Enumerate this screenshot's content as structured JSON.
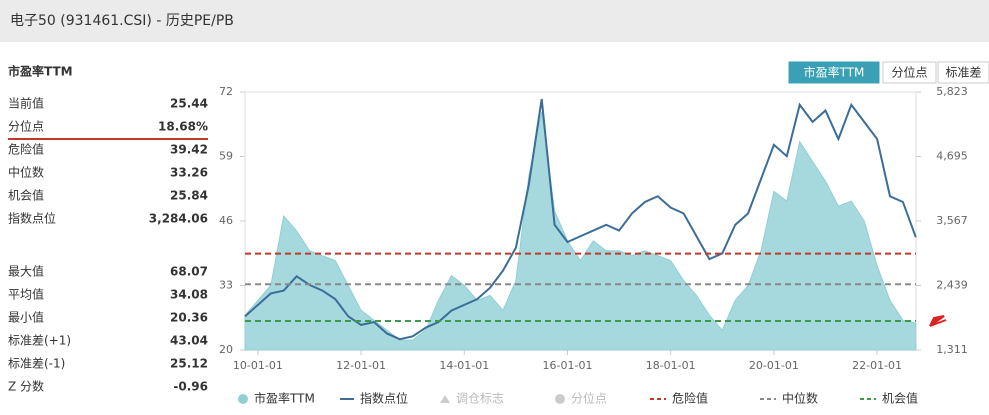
{
  "header": {
    "title": "电子50 (931461.CSI) - 历史PE/PB"
  },
  "panel": {
    "heading": "市盈率TTM",
    "stats_top": [
      {
        "label": "当前值",
        "value": "25.44"
      },
      {
        "label": "分位点",
        "value": "18.68%"
      },
      {
        "label": "危险值",
        "value": "39.42"
      },
      {
        "label": "中位数",
        "value": "33.26"
      },
      {
        "label": "机会值",
        "value": "25.84"
      },
      {
        "label": "指数点位",
        "value": "3,284.06"
      }
    ],
    "stats_bottom": [
      {
        "label": "最大值",
        "value": "68.07"
      },
      {
        "label": "平均值",
        "value": "34.08"
      },
      {
        "label": "最小值",
        "value": "20.36"
      },
      {
        "label": "标准差(+1)",
        "value": "43.04"
      },
      {
        "label": "标准差(-1)",
        "value": "25.12"
      },
      {
        "label": "Z 分数",
        "value": "-0.96"
      }
    ]
  },
  "tabs": [
    "市盈率TTM",
    "分位点",
    "标准差"
  ],
  "chart_data": {
    "type": "line",
    "x": [
      "09-10-01",
      "10-01-01",
      "10-04-01",
      "10-07-01",
      "10-10-01",
      "11-01-01",
      "11-04-01",
      "11-07-01",
      "11-10-01",
      "12-01-01",
      "12-04-01",
      "12-07-01",
      "12-10-01",
      "13-01-01",
      "13-04-01",
      "13-07-01",
      "13-10-01",
      "14-01-01",
      "14-04-01",
      "14-07-01",
      "14-10-01",
      "15-01-01",
      "15-04-01",
      "15-07-01",
      "15-10-01",
      "16-01-01",
      "16-04-01",
      "16-07-01",
      "16-10-01",
      "17-01-01",
      "17-04-01",
      "17-07-01",
      "17-10-01",
      "18-01-01",
      "18-04-01",
      "18-07-01",
      "18-10-01",
      "19-01-01",
      "19-04-01",
      "19-07-01",
      "19-10-01",
      "20-01-01",
      "20-04-01",
      "20-07-01",
      "20-10-01",
      "21-01-01",
      "21-04-01",
      "21-07-01",
      "21-10-01",
      "22-01-01",
      "22-04-01",
      "22-07-01",
      "22-10-01"
    ],
    "xticks": [
      "10-01-01",
      "12-01-01",
      "14-01-01",
      "16-01-01",
      "18-01-01",
      "20-01-01",
      "22-01-01"
    ],
    "series": [
      {
        "name": "市盈率TTM",
        "color": "#8fd0d4",
        "values": [
          27,
          30,
          33,
          47,
          44,
          40,
          39,
          38,
          33,
          28,
          26,
          24,
          22,
          22,
          24,
          30,
          35,
          33,
          30,
          31,
          28,
          34,
          55,
          68,
          48,
          42,
          38,
          42,
          40,
          40,
          39,
          40,
          39,
          38,
          34,
          31,
          27,
          24,
          30,
          33,
          40,
          52,
          50,
          62,
          58,
          54,
          49,
          50,
          46,
          37,
          30,
          26,
          25.44
        ]
      },
      {
        "name": "指数点位",
        "color": "#3a6d99",
        "axis": "y2",
        "values": [
          1900,
          2100,
          2300,
          2350,
          2600,
          2450,
          2350,
          2200,
          1900,
          1750,
          1800,
          1600,
          1500,
          1550,
          1700,
          1800,
          2000,
          2100,
          2200,
          2400,
          2700,
          3100,
          4200,
          5700,
          3500,
          3200,
          3300,
          3400,
          3500,
          3400,
          3700,
          3900,
          4000,
          3800,
          3700,
          3300,
          2900,
          3000,
          3500,
          3700,
          4300,
          4900,
          4700,
          5600,
          5300,
          5500,
          5000,
          5600,
          5300,
          5000,
          4000,
          3900,
          3284
        ]
      }
    ],
    "legend_extra": [
      "调仓标志",
      "分位点"
    ],
    "reference_lines": [
      {
        "name": "危险值",
        "value": 39.42,
        "color": "#c0392b"
      },
      {
        "name": "中位数",
        "value": 33.26,
        "color": "#888888"
      },
      {
        "name": "机会值",
        "value": 25.84,
        "color": "#3d9a4a"
      }
    ],
    "ylim": [
      20,
      72
    ],
    "yticks": [
      20,
      33,
      46,
      59,
      72
    ],
    "y2lim": [
      1311,
      5823
    ],
    "y2ticks": [
      {
        "value": 1311,
        "label": "1,311"
      },
      {
        "value": 2439,
        "label": "2,439"
      },
      {
        "value": 3567,
        "label": "3,567"
      },
      {
        "value": 4695,
        "label": "4,695"
      },
      {
        "value": 5823,
        "label": "5,823"
      }
    ]
  }
}
